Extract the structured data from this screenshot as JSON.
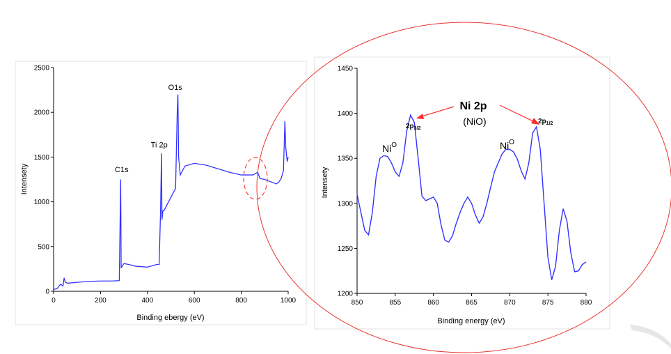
{
  "colors": {
    "series": "#3333ff",
    "ellipse": "#e8352f",
    "arrow": "#ff2a2a",
    "dashed_marker": "#ff3b3b",
    "panel_border": "#cccccc",
    "watermark": "#e6e6e6"
  },
  "chart_data": [
    {
      "type": "line",
      "title": "",
      "xlabel": "Binding ebergy (eV)",
      "ylabel": "Intensety",
      "xlim": [
        0,
        1000
      ],
      "ylim": [
        0,
        2500
      ],
      "x_ticks": [
        "0",
        "200",
        "400",
        "600",
        "800",
        "1000"
      ],
      "y_ticks": [
        "0",
        "500",
        "1000",
        "1500",
        "2000",
        "2500"
      ],
      "grid": false,
      "series": [
        {
          "x": [
            0,
            15,
            30,
            40,
            45,
            50,
            60,
            100,
            150,
            200,
            250,
            280,
            286,
            288,
            292,
            300,
            320,
            350,
            400,
            440,
            450,
            456,
            460,
            462,
            466,
            470,
            480,
            500,
            520,
            527,
            530,
            533,
            540,
            560,
            600,
            650,
            700,
            750,
            800,
            850,
            870,
            880,
            900,
            950,
            960,
            970,
            980,
            986,
            990,
            996,
            1000
          ],
          "y": [
            20,
            30,
            80,
            60,
            150,
            100,
            90,
            100,
            110,
            115,
            115,
            120,
            1250,
            260,
            280,
            310,
            300,
            280,
            270,
            300,
            300,
            900,
            1540,
            800,
            900,
            900,
            950,
            1050,
            1150,
            2000,
            2200,
            1500,
            1300,
            1400,
            1430,
            1410,
            1370,
            1330,
            1300,
            1300,
            1330,
            1260,
            1250,
            1200,
            1220,
            1260,
            1350,
            1900,
            1600,
            1450,
            1500
          ]
        }
      ],
      "annotations": [
        {
          "text": "C1s",
          "x": 285,
          "y": 1300
        },
        {
          "text": "Ti 2p",
          "x": 456,
          "y": 1560
        },
        {
          "text": "O1s",
          "x": 530,
          "y": 2220
        }
      ]
    },
    {
      "type": "line",
      "title": "",
      "xlabel": "Binding energy (eV)",
      "ylabel": "Intensety",
      "xlim": [
        850,
        880
      ],
      "ylim": [
        1200,
        1450
      ],
      "x_ticks": [
        "850",
        "855",
        "860",
        "865",
        "870",
        "875",
        "880"
      ],
      "y_ticks": [
        "1200",
        "1250",
        "1300",
        "1350",
        "1400",
        "1450"
      ],
      "grid": false,
      "series": [
        {
          "x": [
            850,
            850.5,
            851,
            851.5,
            852,
            852.5,
            853,
            853.5,
            854,
            854.5,
            855,
            855.5,
            856,
            856.5,
            857,
            857.5,
            858,
            858.5,
            859,
            859.5,
            860,
            860.5,
            861,
            861.5,
            862,
            862.5,
            863,
            863.5,
            864,
            864.5,
            865,
            865.5,
            866,
            866.5,
            867,
            867.5,
            868,
            868.5,
            869,
            869.5,
            870,
            870.5,
            871,
            871.5,
            872,
            872.5,
            873,
            873.5,
            874,
            874.5,
            875,
            875.5,
            876,
            876.5,
            877,
            877.5,
            878,
            878.5,
            879,
            879.5,
            880
          ],
          "y": [
            1310,
            1290,
            1270,
            1265,
            1290,
            1330,
            1350,
            1353,
            1352,
            1345,
            1335,
            1330,
            1345,
            1380,
            1398,
            1390,
            1350,
            1308,
            1303,
            1305,
            1307,
            1300,
            1276,
            1259,
            1257,
            1264,
            1278,
            1290,
            1300,
            1307,
            1300,
            1287,
            1278,
            1285,
            1300,
            1318,
            1335,
            1345,
            1355,
            1360,
            1360,
            1357,
            1349,
            1336,
            1327,
            1345,
            1378,
            1385,
            1360,
            1300,
            1240,
            1215,
            1230,
            1270,
            1294,
            1280,
            1245,
            1224,
            1225,
            1232,
            1235
          ]
        }
      ],
      "annotations": [
        {
          "text": "Ni",
          "superscript": "O",
          "x": 855.5,
          "y": 1340
        },
        {
          "text": "2p3/2",
          "x": 856.5,
          "y": 1414
        },
        {
          "text": "Ni 2p",
          "x": 865,
          "y": 1418
        },
        {
          "text": "(NiO)",
          "x": 865,
          "y": 1398
        },
        {
          "text": "Ni",
          "superscript": "O",
          "x": 869.5,
          "y": 1346
        },
        {
          "text": "2p1/2",
          "x": 874.5,
          "y": 1394
        }
      ]
    }
  ]
}
